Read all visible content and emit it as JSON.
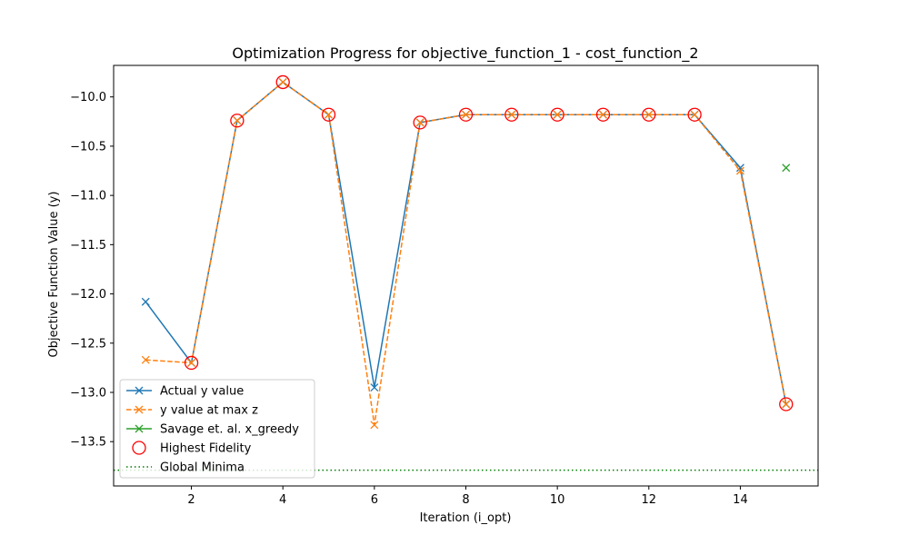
{
  "chart_data": {
    "type": "line",
    "title": "Optimization Progress for objective_function_1 - cost_function_2",
    "xlabel": "Iteration (i_opt)",
    "ylabel": "Objective Function Value (y)",
    "xlim": [
      0.3,
      15.7
    ],
    "ylim": [
      -13.95,
      -9.68
    ],
    "x_ticks": [
      2,
      4,
      6,
      8,
      10,
      12,
      14
    ],
    "x_tick_labels": [
      "2",
      "4",
      "6",
      "8",
      "10",
      "12",
      "14"
    ],
    "y_ticks": [
      -10.0,
      -10.5,
      -11.0,
      -11.5,
      -12.0,
      -12.5,
      -13.0,
      -13.5
    ],
    "y_tick_labels": [
      "−10.0",
      "−10.5",
      "−11.0",
      "−11.5",
      "−12.0",
      "−12.5",
      "−13.0",
      "−13.5"
    ],
    "grid": false,
    "legend_position": "bottom-left",
    "series": [
      {
        "name": "Actual y value",
        "color": "#1f77b4",
        "style": "solid-x",
        "x": [
          1,
          2,
          3,
          4,
          5,
          6,
          7,
          8,
          9,
          10,
          11,
          12,
          13,
          14,
          15
        ],
        "values": [
          -12.08,
          -12.7,
          -10.24,
          -9.85,
          -10.18,
          -12.95,
          -10.26,
          -10.18,
          -10.18,
          -10.18,
          -10.18,
          -10.18,
          -10.18,
          -10.72,
          -13.12
        ]
      },
      {
        "name": "y value at max z",
        "color": "#ff7f0e",
        "style": "dashed-x",
        "x": [
          1,
          2,
          3,
          4,
          5,
          6,
          7,
          8,
          9,
          10,
          11,
          12,
          13,
          14,
          15
        ],
        "values": [
          -12.67,
          -12.7,
          -10.24,
          -9.85,
          -10.18,
          -13.33,
          -10.26,
          -10.18,
          -10.18,
          -10.18,
          -10.18,
          -10.18,
          -10.18,
          -10.75,
          -13.12
        ]
      },
      {
        "name": "Savage et. al. x_greedy",
        "color": "#2ca02c",
        "style": "solid-x",
        "x": [
          15
        ],
        "values": [
          -10.72
        ]
      },
      {
        "name": "Highest Fidelity",
        "color": "#ff0000",
        "style": "open-circle",
        "x": [
          2,
          3,
          4,
          5,
          7,
          8,
          9,
          10,
          11,
          12,
          13,
          15
        ],
        "values": [
          -12.7,
          -10.24,
          -9.85,
          -10.18,
          -10.26,
          -10.18,
          -10.18,
          -10.18,
          -10.18,
          -10.18,
          -10.18,
          -13.12
        ]
      },
      {
        "name": "Global Minima",
        "color": "#008000",
        "style": "dotted-hline",
        "value": -13.79
      }
    ]
  }
}
